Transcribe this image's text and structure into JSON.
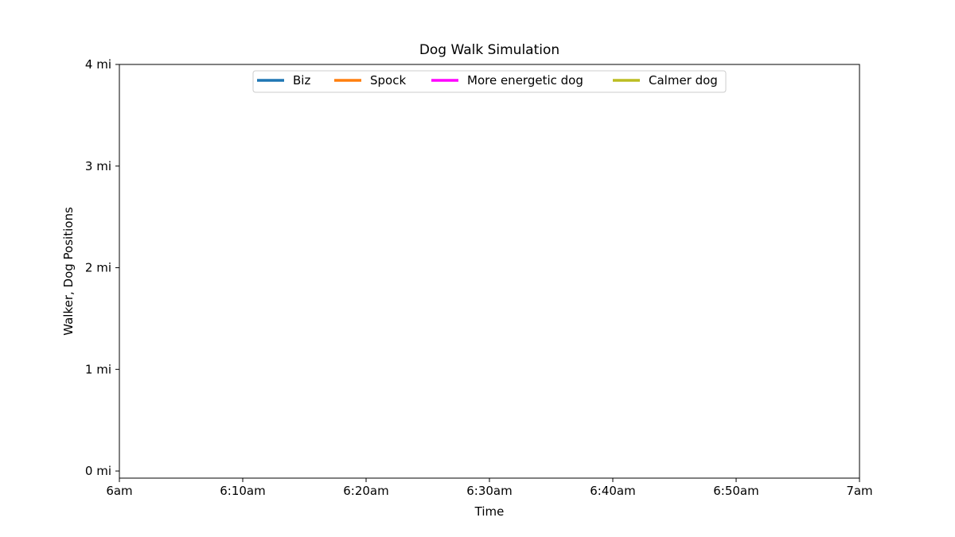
{
  "chart_data": {
    "type": "line",
    "title": "Dog Walk Simulation",
    "xlabel": "Time",
    "ylabel": "Walker, Dog Positions",
    "x_ticks": [
      "6am",
      "6:10am",
      "6:20am",
      "6:30am",
      "6:40am",
      "6:50am",
      "7am"
    ],
    "x_range": [
      "6am",
      "7am"
    ],
    "y_ticks": [
      "0 mi",
      "1 mi",
      "2 mi",
      "3 mi",
      "4 mi"
    ],
    "y_tick_values": [
      0,
      1,
      2,
      3,
      4
    ],
    "ylim": [
      -0.07,
      4
    ],
    "grid": false,
    "legend_position": "top-center",
    "series": [
      {
        "name": "Biz",
        "color": "#1f77b4",
        "values": []
      },
      {
        "name": "Spock",
        "color": "#ff7f0e",
        "values": []
      },
      {
        "name": "More energetic dog",
        "color": "#ff00ff",
        "values": []
      },
      {
        "name": "Calmer dog",
        "color": "#bcbd22",
        "values": []
      }
    ]
  }
}
